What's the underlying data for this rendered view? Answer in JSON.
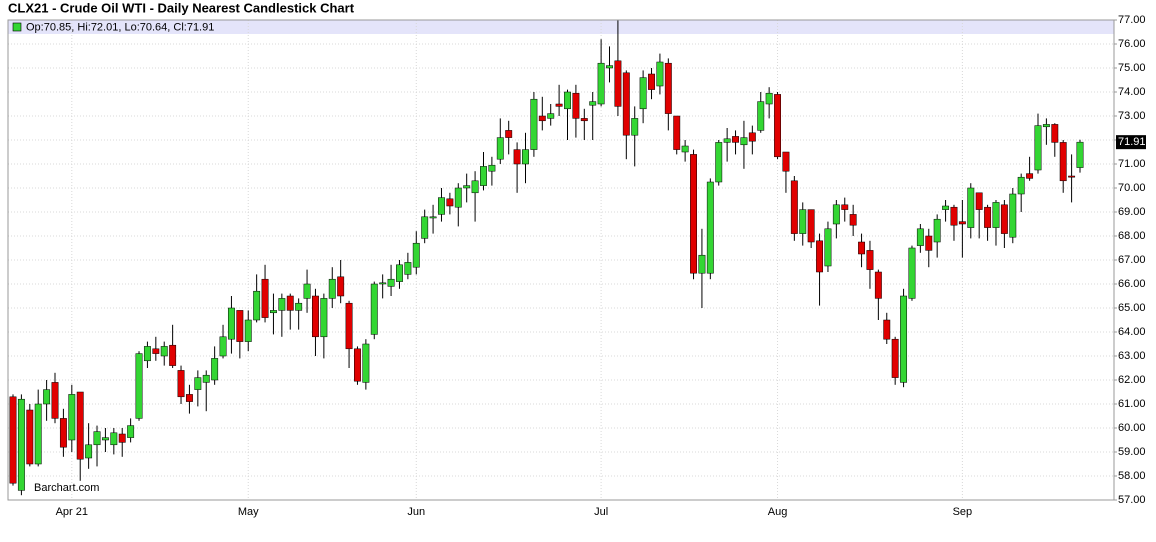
{
  "chart_data": {
    "type": "candlestick",
    "title": "CLX21 - Crude Oil WTI - Daily Nearest Candlestick Chart",
    "ohlc_label": "Op:70.85, Hi:72.01, Lo:70.64, Cl:71.91",
    "last_price_label": "71.91",
    "watermark": "Barchart.com",
    "up_color": "#33d633",
    "down_color": "#e00000",
    "grid": true,
    "ylim": [
      57,
      77
    ],
    "yticks": [
      {
        "value": 57,
        "label": "57.00"
      },
      {
        "value": 58,
        "label": "58.00"
      },
      {
        "value": 59,
        "label": "59.00"
      },
      {
        "value": 60,
        "label": "60.00"
      },
      {
        "value": 61,
        "label": "61.00"
      },
      {
        "value": 62,
        "label": "62.00"
      },
      {
        "value": 63,
        "label": "63.00"
      },
      {
        "value": 64,
        "label": "64.00"
      },
      {
        "value": 65,
        "label": "65.00"
      },
      {
        "value": 66,
        "label": "66.00"
      },
      {
        "value": 67,
        "label": "67.00"
      },
      {
        "value": 68,
        "label": "68.00"
      },
      {
        "value": 69,
        "label": "69.00"
      },
      {
        "value": 70,
        "label": "70.00"
      },
      {
        "value": 71,
        "label": "71.00"
      },
      {
        "value": 72,
        "label": "72.00"
      },
      {
        "value": 73,
        "label": "73.00"
      },
      {
        "value": 74,
        "label": "74.00"
      },
      {
        "value": 75,
        "label": "75.00"
      },
      {
        "value": 76,
        "label": "76.00"
      },
      {
        "value": 77,
        "label": "77.00"
      }
    ],
    "categories": [
      null,
      null,
      null,
      null,
      null,
      null,
      null,
      "Apr 21",
      null,
      null,
      null,
      null,
      null,
      null,
      null,
      null,
      null,
      null,
      null,
      null,
      null,
      null,
      null,
      null,
      null,
      null,
      null,
      null,
      "May",
      null,
      null,
      null,
      null,
      null,
      null,
      null,
      null,
      null,
      null,
      null,
      null,
      null,
      null,
      null,
      null,
      null,
      null,
      null,
      "Jun",
      null,
      null,
      null,
      null,
      null,
      null,
      null,
      null,
      null,
      null,
      null,
      null,
      null,
      null,
      null,
      null,
      null,
      null,
      null,
      null,
      null,
      "Jul",
      null,
      null,
      null,
      null,
      null,
      null,
      null,
      null,
      null,
      null,
      null,
      null,
      null,
      null,
      null,
      null,
      null,
      null,
      null,
      null,
      "Aug",
      null,
      null,
      null,
      null,
      null,
      null,
      null,
      null,
      null,
      null,
      null,
      null,
      null,
      null,
      null,
      null,
      null,
      null,
      null,
      null,
      null,
      "Sep",
      null,
      null,
      null,
      null,
      null,
      null,
      null,
      null,
      null,
      null,
      null,
      null,
      null,
      null
    ],
    "open": [
      61.3,
      57.4,
      60.75,
      58.5,
      61.0,
      61.9,
      60.4,
      59.5,
      61.5,
      58.75,
      59.3,
      59.5,
      59.3,
      59.75,
      59.6,
      60.4,
      62.8,
      63.3,
      63.0,
      63.45,
      62.4,
      61.4,
      61.6,
      61.9,
      62.0,
      63.0,
      63.7,
      64.9,
      63.6,
      64.5,
      66.2,
      64.8,
      64.9,
      65.5,
      64.9,
      65.4,
      65.5,
      63.8,
      65.4,
      66.3,
      65.2,
      63.3,
      61.9,
      63.9,
      66.0,
      65.9,
      66.1,
      66.4,
      66.7,
      67.9,
      68.75,
      68.9,
      69.55,
      69.2,
      70.0,
      69.8,
      70.1,
      70.7,
      71.2,
      72.4,
      71.6,
      71.0,
      71.6,
      73.0,
      72.9,
      73.5,
      73.3,
      73.95,
      72.9,
      73.45,
      73.5,
      75.0,
      75.3,
      74.8,
      72.2,
      73.3,
      74.75,
      74.25,
      75.2,
      73.0,
      71.5,
      71.4,
      66.45,
      66.45,
      70.25,
      71.9,
      72.15,
      71.8,
      72.3,
      72.4,
      73.5,
      73.9,
      71.5,
      70.3,
      68.1,
      69.1,
      67.8,
      66.75,
      68.5,
      69.3,
      68.9,
      67.75,
      67.4,
      66.5,
      64.5,
      63.7,
      61.9,
      65.4,
      67.6,
      68.0,
      67.75,
      69.1,
      69.2,
      68.6,
      68.35,
      69.8,
      69.2,
      68.35,
      69.3,
      67.95,
      69.75,
      70.6,
      70.75,
      72.55,
      72.65,
      71.9,
      70.5,
      70.85
    ],
    "high": [
      61.4,
      61.4,
      61.0,
      61.6,
      62.0,
      62.3,
      60.8,
      61.8,
      61.5,
      60.2,
      60.1,
      60.0,
      60.0,
      60.0,
      60.4,
      63.2,
      63.6,
      63.8,
      63.6,
      64.3,
      62.6,
      61.8,
      62.4,
      62.4,
      63.4,
      64.3,
      65.5,
      64.9,
      64.9,
      66.4,
      66.8,
      65.6,
      65.6,
      65.6,
      65.4,
      66.6,
      65.8,
      65.6,
      66.7,
      67.0,
      65.3,
      63.4,
      63.7,
      66.1,
      66.4,
      66.8,
      67.0,
      67.3,
      68.2,
      69.1,
      69.3,
      70.0,
      69.8,
      70.2,
      70.6,
      70.7,
      71.5,
      71.3,
      72.9,
      72.8,
      71.9,
      72.3,
      74.0,
      73.8,
      73.5,
      74.3,
      74.1,
      74.3,
      73.3,
      74.0,
      76.2,
      75.9,
      77.0,
      74.9,
      73.4,
      74.9,
      75.0,
      75.6,
      75.4,
      73.0,
      72.0,
      71.6,
      68.3,
      70.4,
      72.0,
      72.5,
      72.4,
      72.8,
      72.6,
      74.0,
      74.2,
      74.0,
      71.5,
      70.5,
      69.4,
      69.1,
      68.1,
      68.6,
      69.5,
      69.6,
      69.3,
      68.1,
      67.8,
      66.6,
      64.8,
      63.8,
      65.8,
      67.6,
      68.5,
      68.3,
      68.9,
      69.5,
      69.3,
      69.5,
      70.2,
      69.8,
      69.3,
      69.5,
      69.5,
      70.0,
      70.6,
      71.3,
      73.1,
      72.9,
      72.7,
      72.0,
      71.4,
      72.01
    ],
    "low": [
      57.6,
      57.2,
      58.4,
      58.4,
      60.3,
      60.2,
      58.8,
      59.0,
      57.8,
      58.3,
      58.4,
      59.0,
      58.9,
      58.8,
      59.4,
      60.3,
      62.5,
      62.8,
      62.6,
      62.5,
      61.0,
      60.6,
      60.9,
      60.7,
      61.8,
      62.9,
      63.1,
      62.9,
      63.2,
      64.4,
      64.4,
      63.9,
      63.8,
      64.1,
      64.1,
      64.8,
      63.0,
      62.9,
      65.0,
      65.2,
      62.5,
      61.8,
      61.6,
      63.7,
      65.4,
      65.5,
      65.8,
      66.2,
      66.4,
      67.7,
      68.1,
      68.6,
      68.9,
      68.4,
      69.4,
      68.6,
      69.9,
      70.1,
      71.0,
      71.4,
      69.8,
      70.2,
      71.3,
      72.4,
      72.6,
      73.0,
      72.0,
      72.1,
      72.0,
      72.0,
      73.4,
      74.4,
      73.0,
      71.2,
      70.9,
      72.7,
      73.7,
      73.9,
      72.4,
      71.4,
      71.1,
      66.2,
      65.0,
      66.2,
      70.1,
      71.1,
      71.4,
      70.8,
      71.4,
      72.3,
      72.9,
      71.2,
      69.8,
      67.8,
      67.6,
      67.5,
      65.1,
      66.5,
      67.9,
      68.6,
      68.0,
      66.7,
      65.8,
      64.5,
      63.5,
      61.8,
      61.7,
      65.3,
      67.3,
      66.7,
      67.1,
      68.6,
      67.8,
      67.1,
      67.9,
      67.9,
      67.8,
      67.6,
      67.5,
      67.7,
      69.0,
      70.3,
      70.6,
      71.8,
      71.3,
      69.8,
      69.4,
      70.64
    ],
    "close": [
      57.7,
      61.2,
      58.5,
      61.0,
      61.6,
      60.4,
      59.2,
      61.4,
      58.7,
      59.3,
      59.85,
      59.6,
      59.8,
      59.4,
      60.1,
      63.1,
      63.4,
      63.1,
      63.4,
      62.6,
      61.3,
      61.1,
      62.1,
      62.2,
      62.9,
      63.8,
      65.0,
      63.6,
      64.5,
      65.7,
      64.6,
      64.9,
      65.4,
      64.9,
      65.2,
      66.0,
      63.8,
      65.4,
      66.2,
      65.5,
      63.3,
      61.95,
      63.5,
      66.0,
      66.05,
      66.2,
      66.8,
      66.9,
      67.7,
      68.8,
      68.8,
      69.6,
      69.25,
      70.0,
      70.1,
      70.3,
      70.9,
      70.95,
      72.1,
      72.1,
      71.0,
      71.6,
      73.7,
      72.8,
      73.1,
      73.4,
      74.0,
      72.9,
      72.8,
      73.6,
      75.2,
      75.1,
      73.4,
      72.2,
      72.9,
      74.6,
      74.1,
      75.25,
      73.1,
      71.6,
      71.75,
      66.45,
      67.2,
      70.25,
      71.9,
      72.05,
      71.9,
      72.1,
      71.95,
      73.6,
      73.95,
      71.3,
      70.7,
      68.1,
      69.1,
      67.75,
      66.5,
      68.3,
      69.3,
      69.1,
      68.45,
      67.25,
      66.6,
      65.4,
      63.7,
      62.1,
      65.5,
      67.5,
      68.3,
      67.4,
      68.7,
      69.25,
      68.45,
      68.5,
      70.0,
      69.1,
      68.35,
      69.4,
      68.1,
      69.75,
      70.45,
      70.4,
      72.6,
      72.65,
      71.9,
      70.3,
      70.45,
      71.91
    ]
  }
}
